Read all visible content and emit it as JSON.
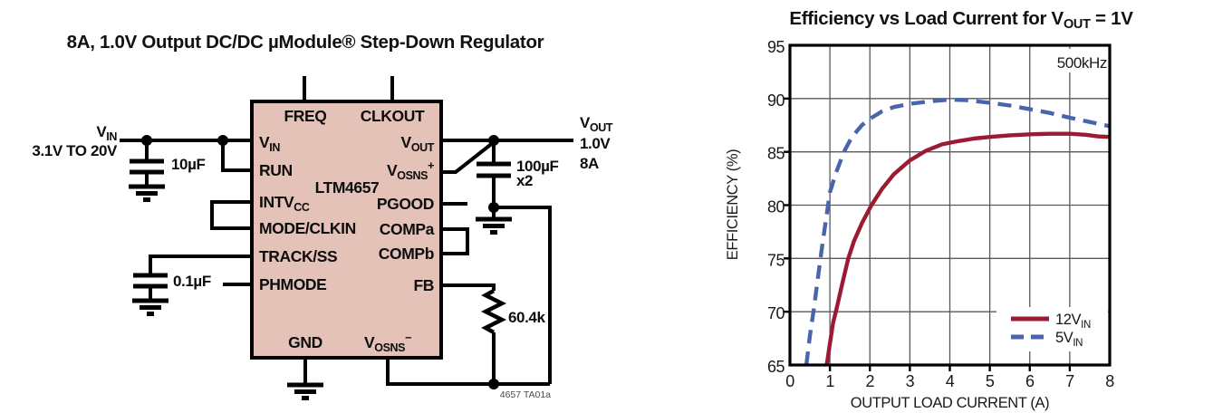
{
  "schematic": {
    "title": "8A, 1.0V Output DC/DC µModule® Step-Down Regulator",
    "caption": "4657 TA01a",
    "ic": {
      "part_number": "LTM4657",
      "fill_color": "#E4C2B8",
      "pins_top": [
        {
          "t": "FREQ"
        },
        {
          "t": "CLKOUT"
        }
      ],
      "pins_left": [
        {
          "t": "V",
          "s": "IN"
        },
        {
          "t": "RUN"
        },
        {
          "t": "INTV",
          "s": "CC"
        },
        {
          "t": "MODE/CLKIN"
        },
        {
          "t": "TRACK/SS"
        },
        {
          "t": "PHMODE"
        }
      ],
      "pins_right": [
        {
          "t": "V",
          "s": "OUT"
        },
        {
          "t": "V",
          "s": "OSNS",
          "sup": "+"
        },
        {
          "t": "PGOOD"
        },
        {
          "t": "COMPa"
        },
        {
          "t": "COMPb"
        },
        {
          "t": "FB"
        }
      ],
      "pins_bottom": [
        {
          "t": "GND"
        },
        {
          "t": "V",
          "s": "OSNS",
          "sup": "−"
        }
      ]
    },
    "input": {
      "label_t": "V",
      "label_s": "IN",
      "range": "3.1V TO 20V"
    },
    "output": {
      "label_t": "V",
      "label_s": "OUT",
      "voltage": "1.0V",
      "current": "8A"
    },
    "components": {
      "input_cap": "10µF",
      "softstart_cap": "0.1µF",
      "output_cap": "100µF",
      "output_cap_qty": "x2",
      "feedback_resistor": "60.4k"
    }
  },
  "chart": {
    "title": {
      "pre": "Efficiency vs Load Current for V",
      "sub": "OUT",
      "post": " = 1V"
    },
    "annotation": "500kHz",
    "x_axis": {
      "label": "OUTPUT LOAD CURRENT (A)",
      "ticks": [
        "0",
        "1",
        "2",
        "3",
        "4",
        "5",
        "6",
        "7",
        "8"
      ]
    },
    "y_axis": {
      "label": "EFFICIENCY (%)",
      "ticks": [
        "95",
        "90",
        "85",
        "80",
        "75",
        "70",
        "65"
      ]
    },
    "legend": [
      {
        "label": "12V",
        "sub": "IN",
        "color": "#9B1B33",
        "style": "solid"
      },
      {
        "label": "5V",
        "sub": "IN",
        "color": "#4A64AE",
        "style": "dashed"
      }
    ],
    "colors": {
      "grid": "#59595B",
      "frame": "#000000"
    }
  },
  "chart_data": {
    "type": "line",
    "title": "Efficiency vs Load Current for VOUT = 1V",
    "xlabel": "OUTPUT LOAD CURRENT (A)",
    "ylabel": "EFFICIENCY (%)",
    "xlim": [
      0,
      8
    ],
    "ylim": [
      65,
      95
    ],
    "xstep": 1,
    "ystep": 5,
    "grid": true,
    "legend_position": "lower right",
    "annotation": "500kHz",
    "series": [
      {
        "name": "12VIN",
        "color": "#9B1B33",
        "style": "solid",
        "points": [
          [
            0.92,
            65
          ],
          [
            1.0,
            67
          ],
          [
            1.08,
            69
          ],
          [
            1.15,
            70
          ],
          [
            1.3,
            72.5
          ],
          [
            1.46,
            75
          ],
          [
            1.6,
            76.6
          ],
          [
            1.8,
            78.3
          ],
          [
            2.04,
            80
          ],
          [
            2.3,
            81.5
          ],
          [
            2.6,
            82.9
          ],
          [
            3.0,
            84.2
          ],
          [
            3.4,
            85.1
          ],
          [
            3.8,
            85.7
          ],
          [
            4.2,
            86.0
          ],
          [
            4.6,
            86.25
          ],
          [
            5.0,
            86.4
          ],
          [
            5.5,
            86.55
          ],
          [
            6.0,
            86.65
          ],
          [
            6.5,
            86.7
          ],
          [
            7.0,
            86.7
          ],
          [
            7.4,
            86.6
          ],
          [
            7.7,
            86.45
          ],
          [
            8.0,
            86.4
          ]
        ]
      },
      {
        "name": "5VIN",
        "color": "#4A64AE",
        "style": "dashed",
        "points": [
          [
            0.41,
            65
          ],
          [
            0.5,
            67.8
          ],
          [
            0.6,
            70.3
          ],
          [
            0.7,
            73.2
          ],
          [
            0.8,
            76
          ],
          [
            0.9,
            78.6
          ],
          [
            1.0,
            81.2
          ],
          [
            1.15,
            83
          ],
          [
            1.35,
            85
          ],
          [
            1.55,
            86.4
          ],
          [
            1.8,
            87.5
          ],
          [
            2.0,
            88.1
          ],
          [
            2.3,
            88.8
          ],
          [
            2.6,
            89.2
          ],
          [
            3.0,
            89.5
          ],
          [
            3.5,
            89.75
          ],
          [
            4.0,
            89.9
          ],
          [
            4.4,
            89.85
          ],
          [
            5.0,
            89.6
          ],
          [
            5.5,
            89.35
          ],
          [
            6.0,
            89.0
          ],
          [
            6.5,
            88.65
          ],
          [
            7.0,
            88.2
          ],
          [
            7.5,
            87.8
          ],
          [
            8.0,
            87.4
          ]
        ]
      }
    ]
  }
}
